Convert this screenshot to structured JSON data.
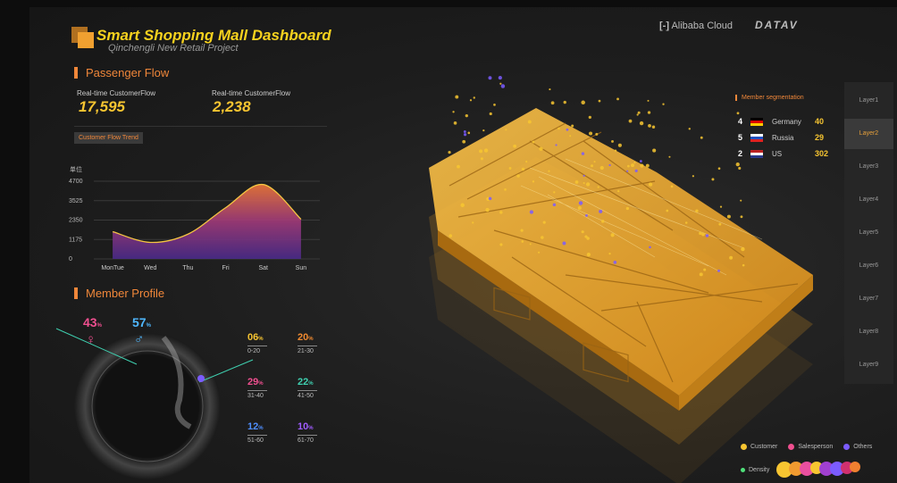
{
  "header": {
    "title": "Smart Shopping Mall Dashboard",
    "subtitle": "Qinchengli New Retail Project",
    "logos": [
      "Alibaba Cloud",
      "DATAV"
    ]
  },
  "passenger_flow": {
    "title": "Passenger Flow",
    "metrics": [
      {
        "label": "Real-time CustomerFlow",
        "value": "17,595"
      },
      {
        "label": "Real-time CustomerFlow",
        "value": "2,238"
      }
    ],
    "button": "Customer Flow Trend"
  },
  "chart_data": {
    "type": "area",
    "y_unit": "单位",
    "categories": [
      "MonTue",
      "Wed",
      "Thu",
      "Fri",
      "Sat",
      "Sun"
    ],
    "values": [
      1650,
      1000,
      1500,
      3100,
      4500,
      2400
    ],
    "ylim": [
      0,
      4700
    ],
    "yticks": [
      0,
      1175,
      2350,
      3525,
      4700
    ],
    "color": "#f5c542",
    "grid": true
  },
  "member_profile": {
    "title": "Member Profile",
    "gender": [
      {
        "value": "43",
        "unit": "%",
        "symbol": "♀"
      },
      {
        "value": "57",
        "unit": "%",
        "symbol": "♂"
      }
    ],
    "age_groups": [
      {
        "value": "06",
        "unit": "%",
        "range": "0-20"
      },
      {
        "value": "20",
        "unit": "%",
        "range": "21-30"
      },
      {
        "value": "29",
        "unit": "%",
        "range": "31-40"
      },
      {
        "value": "22",
        "unit": "%",
        "range": "41-50"
      },
      {
        "value": "12",
        "unit": "%",
        "range": "51-60"
      },
      {
        "value": "10",
        "unit": "%",
        "range": "61-70"
      }
    ]
  },
  "member_segmentation": {
    "title": "Member segmentation",
    "rows": [
      {
        "rank": "4",
        "country": "Germany",
        "value": "40"
      },
      {
        "rank": "5",
        "country": "Russia",
        "value": "29"
      },
      {
        "rank": "2",
        "country": "US",
        "value": "302"
      }
    ]
  },
  "layers": {
    "items": [
      "Layer1",
      "Layer2",
      "Layer3",
      "Layer4",
      "Layer5",
      "Layer6",
      "Layer7",
      "Layer8",
      "Layer9"
    ],
    "active": 1
  },
  "legend": {
    "items": [
      "Customer",
      "Salesperson",
      "Others"
    ],
    "density": "Density"
  }
}
